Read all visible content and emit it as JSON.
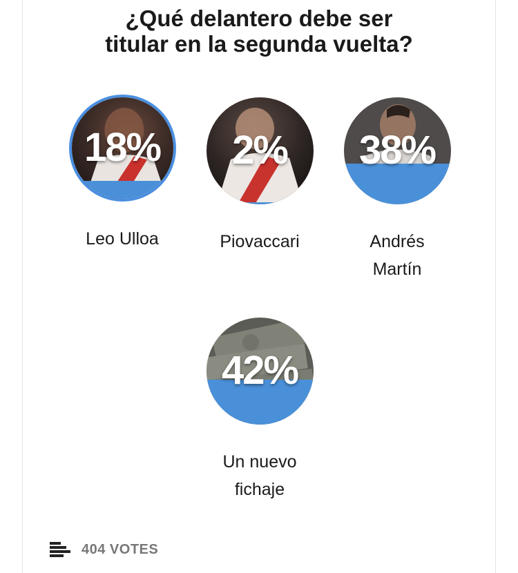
{
  "poll": {
    "title_line1": "¿Qué delantero debe ser",
    "title_line2": "titular en la segunda vuelta?"
  },
  "options": [
    {
      "percent_text": "18%",
      "percent": 18,
      "label": "Leo Ulloa",
      "selected": true
    },
    {
      "percent_text": "2%",
      "percent": 2,
      "label": "Piovaccari",
      "selected": false
    },
    {
      "percent_text": "38%",
      "percent": 38,
      "label_line1": "Andrés",
      "label_line2": "Martín",
      "selected": false
    },
    {
      "percent_text": "42%",
      "percent": 42,
      "label_line1": "Un nuevo",
      "label_line2": "fichaje",
      "selected": false
    }
  ],
  "footer": {
    "icon": "bar-chart-icon",
    "votes_label": "404 VOTES"
  },
  "colors": {
    "accent": "#4a90d9",
    "selected_ring": "#4a8fe0"
  }
}
